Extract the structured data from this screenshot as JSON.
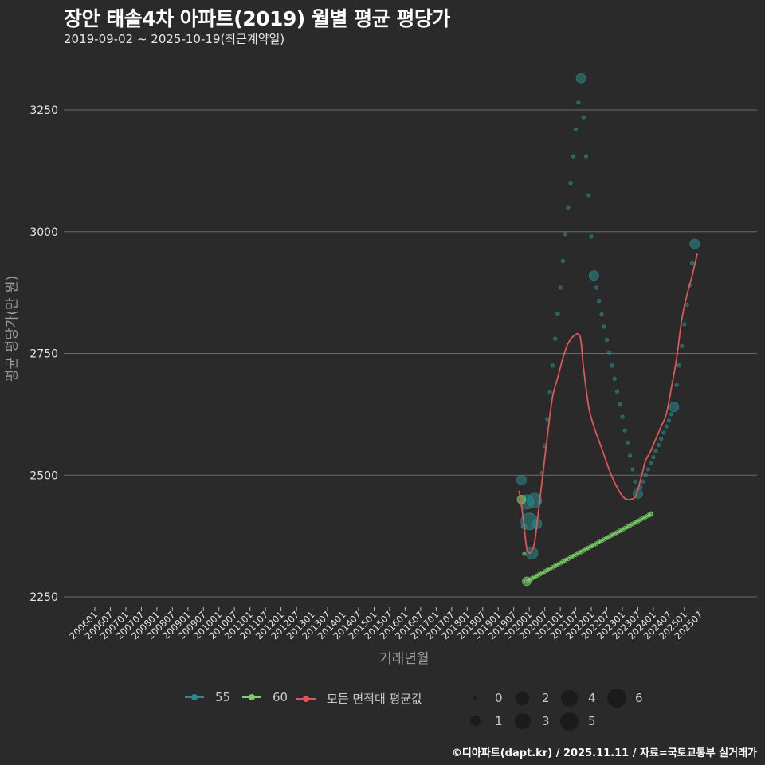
{
  "header": {
    "title": "장안 태솔4차 아파트(2019) 월별 평균 평당가",
    "subtitle": "2019-09-02 ~ 2025-10-19(최근계약일)"
  },
  "axes": {
    "ylabel": "평균 평당가(만 원)",
    "xlabel": "거래년월"
  },
  "legend": {
    "series": [
      {
        "label": "55",
        "color": "#2a8a8a"
      },
      {
        "label": "60",
        "color": "#7ccf6a"
      },
      {
        "label": "모든 면적대 평균값",
        "color": "#e05555"
      }
    ],
    "sizes": [
      "0",
      "1",
      "2",
      "3",
      "4",
      "5",
      "6"
    ]
  },
  "footer": "©디아파트(dapt.kr) / 2025.11.11 / 자료=국토교통부 실거래가",
  "chart_data": {
    "type": "scatter",
    "title": "장안 태솔4차 아파트(2019) 월별 평균 평당가",
    "subtitle": "2019-09-02 ~ 2025-10-19(최근계약일)",
    "xlabel": "거래년월",
    "ylabel": "평균 평당가(만 원)",
    "ylim": [
      2230,
      3350
    ],
    "yticks": [
      2250,
      2500,
      2750,
      3000,
      3250
    ],
    "xticks": [
      "200601",
      "200607",
      "200701",
      "200707",
      "200801",
      "200807",
      "200901",
      "200907",
      "201001",
      "201007",
      "201101",
      "201107",
      "201201",
      "201207",
      "201301",
      "201307",
      "201401",
      "201407",
      "201501",
      "201507",
      "201601",
      "201607",
      "201701",
      "201707",
      "201801",
      "201807",
      "201901",
      "201907",
      "202001",
      "202007",
      "202101",
      "202107",
      "202201",
      "202207",
      "202301",
      "202307",
      "202401",
      "202407",
      "202501",
      "202507"
    ],
    "grid": "horizontal",
    "legend_position": "bottom",
    "series": [
      {
        "name": "55",
        "color": "#2a8a8a",
        "points": [
          {
            "x": "201910",
            "y": 2490,
            "size": 2
          },
          {
            "x": "201911",
            "y": 2395,
            "size": 1
          },
          {
            "x": "201912",
            "y": 2445,
            "size": 4
          },
          {
            "x": "202001",
            "y": 2405,
            "size": 5
          },
          {
            "x": "202002",
            "y": 2340,
            "size": 3
          },
          {
            "x": "202003",
            "y": 2448,
            "size": 4
          },
          {
            "x": "202004",
            "y": 2400,
            "size": 2
          },
          {
            "x": "202005",
            "y": 2445,
            "size": 0
          },
          {
            "x": "202006",
            "y": 2505,
            "size": 0
          },
          {
            "x": "202007",
            "y": 2560,
            "size": 0
          },
          {
            "x": "202008",
            "y": 2615,
            "size": 0
          },
          {
            "x": "202009",
            "y": 2670,
            "size": 0
          },
          {
            "x": "202010",
            "y": 2725,
            "size": 0
          },
          {
            "x": "202011",
            "y": 2780,
            "size": 0
          },
          {
            "x": "202012",
            "y": 2832,
            "size": 0
          },
          {
            "x": "202101",
            "y": 2885,
            "size": 0
          },
          {
            "x": "202102",
            "y": 2940,
            "size": 0
          },
          {
            "x": "202103",
            "y": 2995,
            "size": 0
          },
          {
            "x": "202104",
            "y": 3050,
            "size": 0
          },
          {
            "x": "202105",
            "y": 3100,
            "size": 0
          },
          {
            "x": "202106",
            "y": 3155,
            "size": 0
          },
          {
            "x": "202107",
            "y": 3210,
            "size": 0
          },
          {
            "x": "202108",
            "y": 3265,
            "size": 0
          },
          {
            "x": "202109",
            "y": 3315,
            "size": 2
          },
          {
            "x": "202110",
            "y": 3235,
            "size": 0
          },
          {
            "x": "202111",
            "y": 3155,
            "size": 0
          },
          {
            "x": "202112",
            "y": 3075,
            "size": 0
          },
          {
            "x": "202201",
            "y": 2990,
            "size": 0
          },
          {
            "x": "202202",
            "y": 2910,
            "size": 2
          },
          {
            "x": "202203",
            "y": 2885,
            "size": 0
          },
          {
            "x": "202204",
            "y": 2858,
            "size": 0
          },
          {
            "x": "202205",
            "y": 2830,
            "size": 0
          },
          {
            "x": "202206",
            "y": 2805,
            "size": 0
          },
          {
            "x": "202207",
            "y": 2778,
            "size": 0
          },
          {
            "x": "202208",
            "y": 2752,
            "size": 0
          },
          {
            "x": "202209",
            "y": 2725,
            "size": 0
          },
          {
            "x": "202210",
            "y": 2698,
            "size": 0
          },
          {
            "x": "202211",
            "y": 2672,
            "size": 0
          },
          {
            "x": "202212",
            "y": 2645,
            "size": 0
          },
          {
            "x": "202301",
            "y": 2620,
            "size": 0
          },
          {
            "x": "202302",
            "y": 2592,
            "size": 0
          },
          {
            "x": "202303",
            "y": 2567,
            "size": 0
          },
          {
            "x": "202304",
            "y": 2540,
            "size": 0
          },
          {
            "x": "202305",
            "y": 2512,
            "size": 0
          },
          {
            "x": "202306",
            "y": 2487,
            "size": 0
          },
          {
            "x": "202307",
            "y": 2462,
            "size": 2
          },
          {
            "x": "202308",
            "y": 2475,
            "size": 0
          },
          {
            "x": "202309",
            "y": 2487,
            "size": 0
          },
          {
            "x": "202310",
            "y": 2500,
            "size": 0
          },
          {
            "x": "202311",
            "y": 2512,
            "size": 0
          },
          {
            "x": "202312",
            "y": 2525,
            "size": 0
          },
          {
            "x": "202401",
            "y": 2537,
            "size": 0
          },
          {
            "x": "202402",
            "y": 2550,
            "size": 0
          },
          {
            "x": "202403",
            "y": 2562,
            "size": 0
          },
          {
            "x": "202404",
            "y": 2575,
            "size": 0
          },
          {
            "x": "202405",
            "y": 2587,
            "size": 0
          },
          {
            "x": "202406",
            "y": 2600,
            "size": 0
          },
          {
            "x": "202407",
            "y": 2612,
            "size": 0
          },
          {
            "x": "202408",
            "y": 2625,
            "size": 0
          },
          {
            "x": "202409",
            "y": 2640,
            "size": 2
          },
          {
            "x": "202410",
            "y": 2685,
            "size": 0
          },
          {
            "x": "202411",
            "y": 2725,
            "size": 0
          },
          {
            "x": "202412",
            "y": 2765,
            "size": 0
          },
          {
            "x": "202501",
            "y": 2810,
            "size": 0
          },
          {
            "x": "202502",
            "y": 2850,
            "size": 0
          },
          {
            "x": "202503",
            "y": 2890,
            "size": 0
          },
          {
            "x": "202504",
            "y": 2935,
            "size": 0
          },
          {
            "x": "202505",
            "y": 2975,
            "size": 2
          }
        ]
      },
      {
        "name": "60",
        "color": "#7ccf6a",
        "points": [
          {
            "x": "201910",
            "y": 2450,
            "size": 2
          },
          {
            "x": "201911",
            "y": 2338,
            "size": 0
          },
          {
            "x": "201912",
            "y": 2282,
            "size": 2
          },
          {
            "x": "202312",
            "y": 2420,
            "size": 1
          }
        ]
      },
      {
        "name": "모든 면적대 평균값",
        "type": "line",
        "color": "#e05555",
        "x": [
          "201909",
          "201910",
          "201911",
          "201912",
          "202001",
          "202002",
          "202003",
          "202004",
          "202006",
          "202008",
          "202010",
          "202012",
          "202102",
          "202104",
          "202106",
          "202108",
          "202109",
          "202110",
          "202112",
          "202202",
          "202204",
          "202206",
          "202208",
          "202210",
          "202212",
          "202302",
          "202304",
          "202306",
          "202307",
          "202308",
          "202309",
          "202310",
          "202312",
          "202402",
          "202404",
          "202406",
          "202408",
          "202410",
          "202412",
          "202502",
          "202504",
          "202506"
        ],
        "values": [
          2468,
          2440,
          2395,
          2350,
          2340,
          2345,
          2360,
          2400,
          2490,
          2580,
          2660,
          2700,
          2740,
          2770,
          2785,
          2790,
          2775,
          2720,
          2640,
          2600,
          2570,
          2540,
          2510,
          2485,
          2465,
          2452,
          2450,
          2455,
          2470,
          2490,
          2510,
          2530,
          2550,
          2575,
          2600,
          2625,
          2680,
          2740,
          2820,
          2870,
          2910,
          2955
        ]
      }
    ]
  }
}
